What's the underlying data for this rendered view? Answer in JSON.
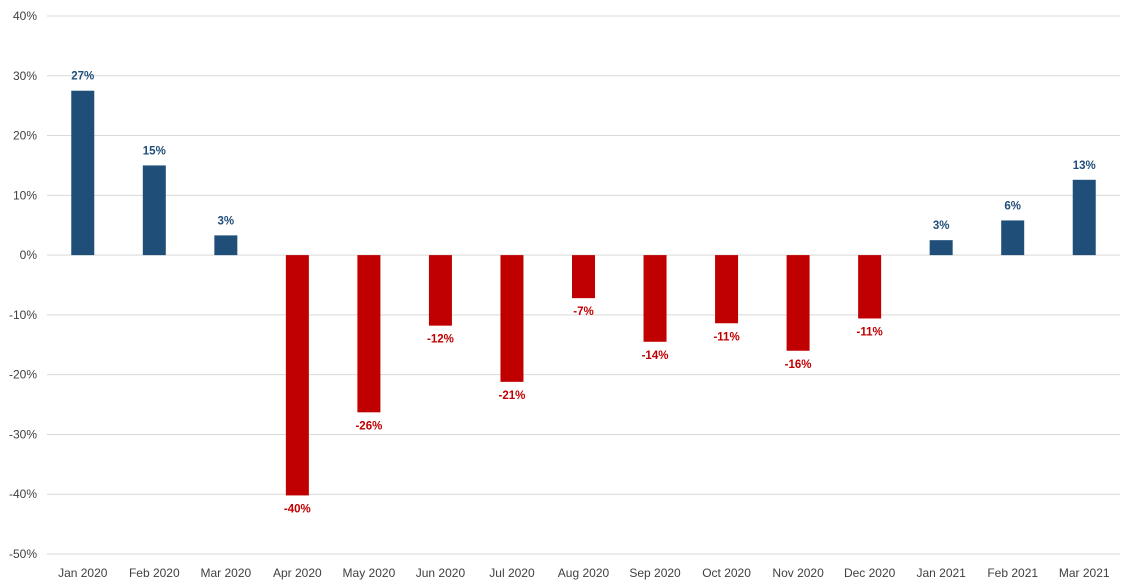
{
  "chart_data": {
    "type": "bar",
    "categories": [
      "Jan 2020",
      "Feb 2020",
      "Mar 2020",
      "Apr 2020",
      "May 2020",
      "Jun 2020",
      "Jul 2020",
      "Aug 2020",
      "Sep 2020",
      "Oct 2020",
      "Nov 2020",
      "Dec 2020",
      "Jan 2021",
      "Feb 2021",
      "Mar 2021"
    ],
    "values": [
      27.5,
      15,
      3.3,
      -40.2,
      -26.3,
      -11.8,
      -21.2,
      -7.2,
      -14.5,
      -11.4,
      -16,
      -10.6,
      2.5,
      5.8,
      12.6
    ],
    "value_labels": [
      "27%",
      "15%",
      "3%",
      "-40%",
      "-26%",
      "-12%",
      "-21%",
      "-7%",
      "-14%",
      "-11%",
      "-16%",
      "-11%",
      "3%",
      "6%",
      "13%"
    ],
    "ylim": [
      -50,
      40
    ],
    "yticks": [
      40,
      30,
      20,
      10,
      0,
      -10,
      -20,
      -30,
      -40,
      -50
    ],
    "ytick_labels": [
      "40%",
      "30%",
      "20%",
      "10%",
      "0%",
      "-10%",
      "-20%",
      "-30%",
      "-40%",
      "-50%"
    ],
    "grid": true,
    "legend": "none",
    "colors": {
      "positive": "#1f4e79",
      "negative": "#c00000",
      "grid": "#d9d9d9",
      "text": "#404040"
    }
  }
}
